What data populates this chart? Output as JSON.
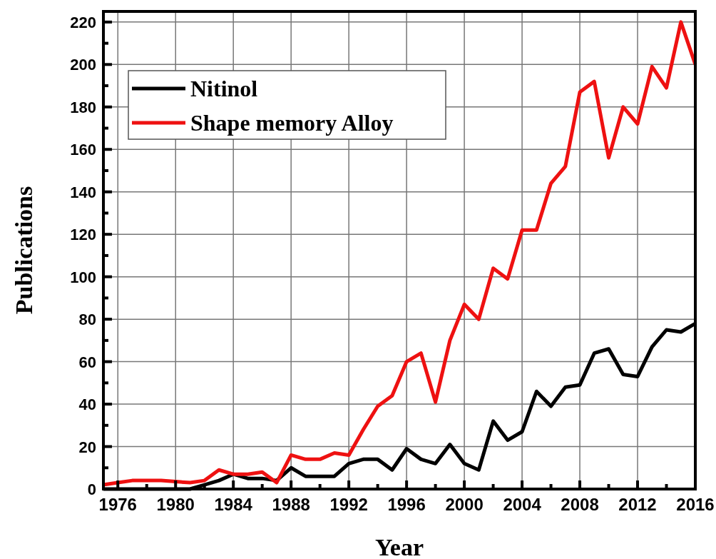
{
  "chart_data": {
    "type": "line",
    "xlabel": "Year",
    "ylabel": "Publications",
    "x": [
      1975,
      1976,
      1977,
      1978,
      1979,
      1980,
      1981,
      1982,
      1983,
      1984,
      1985,
      1986,
      1987,
      1988,
      1989,
      1990,
      1991,
      1992,
      1993,
      1994,
      1995,
      1996,
      1997,
      1998,
      1999,
      2000,
      2001,
      2002,
      2003,
      2004,
      2005,
      2006,
      2007,
      2008,
      2009,
      2010,
      2011,
      2012,
      2013,
      2014,
      2015,
      2016
    ],
    "series": [
      {
        "name": "Nitinol",
        "color": "#000000",
        "values": [
          0,
          0,
          0,
          0,
          0,
          0,
          0,
          2,
          4,
          7,
          5,
          5,
          4,
          10,
          6,
          6,
          6,
          12,
          14,
          14,
          9,
          19,
          14,
          12,
          21,
          12,
          9,
          32,
          23,
          27,
          46,
          39,
          48,
          49,
          64,
          66,
          54,
          53,
          67,
          75,
          74,
          78
        ]
      },
      {
        "name": "Shape memory Alloy",
        "color": "#ee1111",
        "values": [
          2,
          3,
          4,
          4,
          4,
          3.5,
          3,
          4,
          9,
          7,
          7,
          8,
          3,
          16,
          14,
          14,
          17,
          16,
          28,
          39,
          44,
          60,
          64,
          41,
          70,
          87,
          80,
          104,
          99,
          122,
          122,
          144,
          152,
          187,
          192,
          156,
          180,
          172,
          199,
          189,
          220,
          200
        ]
      }
    ],
    "xlim": [
      1975,
      2016
    ],
    "xticks": [
      1976,
      {
        "value": 1978,
        "label": null
      },
      1980,
      {
        "value": 1982,
        "label": null
      },
      1984,
      {
        "value": 1986,
        "label": null
      },
      1988,
      {
        "value": 1990,
        "label": null
      },
      1992,
      {
        "value": 1994,
        "label": null
      },
      1996,
      {
        "value": 1998,
        "label": null
      },
      2000,
      {
        "value": 2002,
        "label": null
      },
      2004,
      {
        "value": 2006,
        "label": null
      },
      2008,
      {
        "value": 2010,
        "label": null
      },
      2012,
      {
        "value": 2014,
        "label": null
      },
      2016
    ],
    "ylim": [
      0,
      225
    ],
    "yticks": [
      0,
      {
        "value": 10,
        "label": null
      },
      20,
      {
        "value": 30,
        "label": null
      },
      40,
      {
        "value": 50,
        "label": null
      },
      60,
      {
        "value": 70,
        "label": null
      },
      80,
      {
        "value": 90,
        "label": null
      },
      100,
      {
        "value": 110,
        "label": null
      },
      120,
      {
        "value": 130,
        "label": null
      },
      140,
      {
        "value": 150,
        "label": null
      },
      160,
      {
        "value": 170,
        "label": null
      },
      180,
      {
        "value": 190,
        "label": null
      },
      200,
      {
        "value": 210,
        "label": null
      },
      220
    ],
    "grid": true,
    "legend": "top left",
    "marker": "none",
    "line_style": "solid"
  }
}
